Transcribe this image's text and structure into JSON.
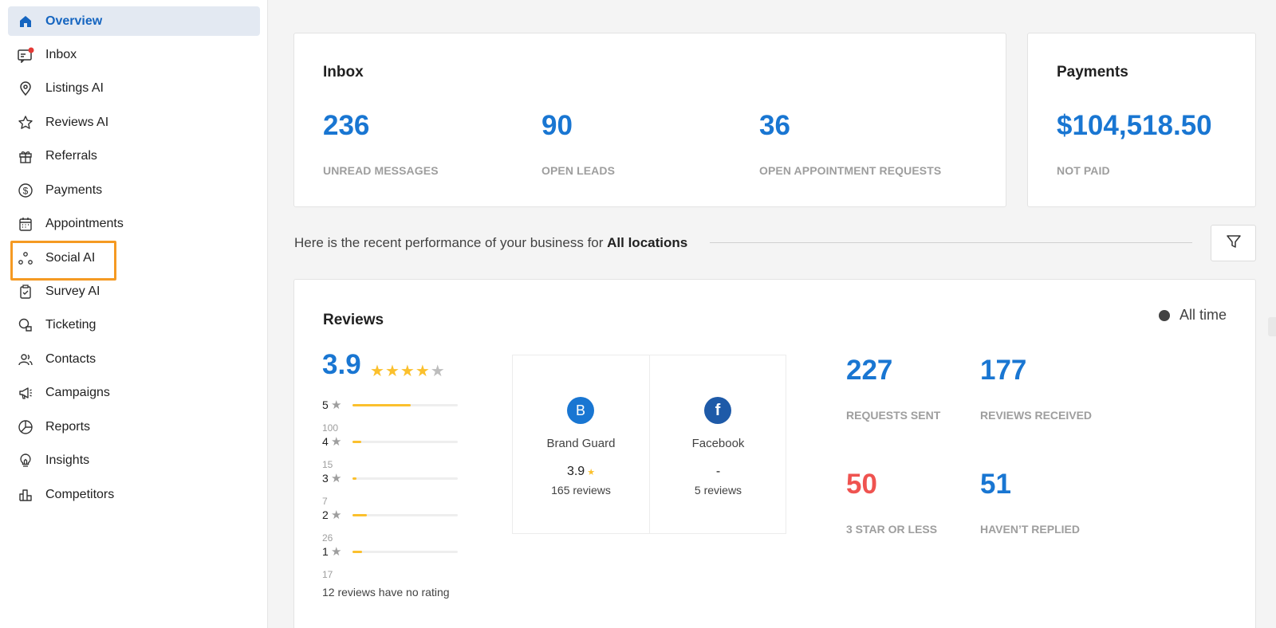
{
  "sidebar": {
    "items": [
      {
        "label": "Overview",
        "icon": "home-icon",
        "active": true
      },
      {
        "label": "Inbox",
        "icon": "inbox-icon",
        "badge": true
      },
      {
        "label": "Listings AI",
        "icon": "map-pin-icon"
      },
      {
        "label": "Reviews AI",
        "icon": "star-icon"
      },
      {
        "label": "Referrals",
        "icon": "gift-icon"
      },
      {
        "label": "Payments",
        "icon": "dollar-icon"
      },
      {
        "label": "Appointments",
        "icon": "calendar-icon"
      },
      {
        "label": "Social AI",
        "icon": "social-share-icon",
        "highlighted": true
      },
      {
        "label": "Survey AI",
        "icon": "clipboard-check-icon"
      },
      {
        "label": "Ticketing",
        "icon": "chat-bubbles-icon"
      },
      {
        "label": "Contacts",
        "icon": "people-icon"
      },
      {
        "label": "Campaigns",
        "icon": "megaphone-icon"
      },
      {
        "label": "Reports",
        "icon": "pie-chart-icon"
      },
      {
        "label": "Insights",
        "icon": "lightbulb-icon"
      },
      {
        "label": "Competitors",
        "icon": "bar-chart-icon"
      }
    ]
  },
  "inbox_card": {
    "title": "Inbox",
    "stats": [
      {
        "value": "236",
        "label": "UNREAD MESSAGES"
      },
      {
        "value": "90",
        "label": "OPEN LEADS"
      },
      {
        "value": "36",
        "label": "OPEN APPOINTMENT REQUESTS"
      }
    ]
  },
  "payments_card": {
    "title": "Payments",
    "value": "$104,518.50",
    "label": "NOT PAID"
  },
  "performance": {
    "prefix": "Here is the recent performance of your business for",
    "location": "All locations"
  },
  "reviews_card": {
    "title": "Reviews",
    "time_filter": "All time",
    "average": "3.9",
    "star_rating": 3.9,
    "distribution": [
      {
        "stars": "5",
        "fraction": 0.55,
        "count": "100"
      },
      {
        "stars": "4",
        "fraction": 0.08,
        "count": "15"
      },
      {
        "stars": "3",
        "fraction": 0.04,
        "count": "7"
      },
      {
        "stars": "2",
        "fraction": 0.14,
        "count": "26"
      },
      {
        "stars": "1",
        "fraction": 0.09,
        "count": "17"
      }
    ],
    "no_rating_text": "12 reviews have no rating",
    "sources": [
      {
        "name": "Brand Guard",
        "logo": "B",
        "icon": "brand-guard-icon",
        "rating": "3.9",
        "reviews": "165 reviews",
        "color": "#1976d2"
      },
      {
        "name": "Facebook",
        "logo": "f",
        "icon": "facebook-icon",
        "rating": "-",
        "reviews": "5 reviews",
        "color": "#1e5aa8"
      }
    ],
    "metrics": [
      {
        "value": "227",
        "label": "REQUESTS SENT",
        "color": "#1976d2"
      },
      {
        "value": "177",
        "label": "REVIEWS RECEIVED",
        "color": "#1976d2"
      },
      {
        "value": "50",
        "label": "3 STAR OR LESS",
        "color": "#ef5350"
      },
      {
        "value": "51",
        "label": "HAVEN’T REPLIED",
        "color": "#1976d2"
      }
    ]
  },
  "colors": {
    "accent": "#1976d2",
    "star": "#fbc02d",
    "highlight": "#f59a23",
    "negative": "#ef5350"
  }
}
